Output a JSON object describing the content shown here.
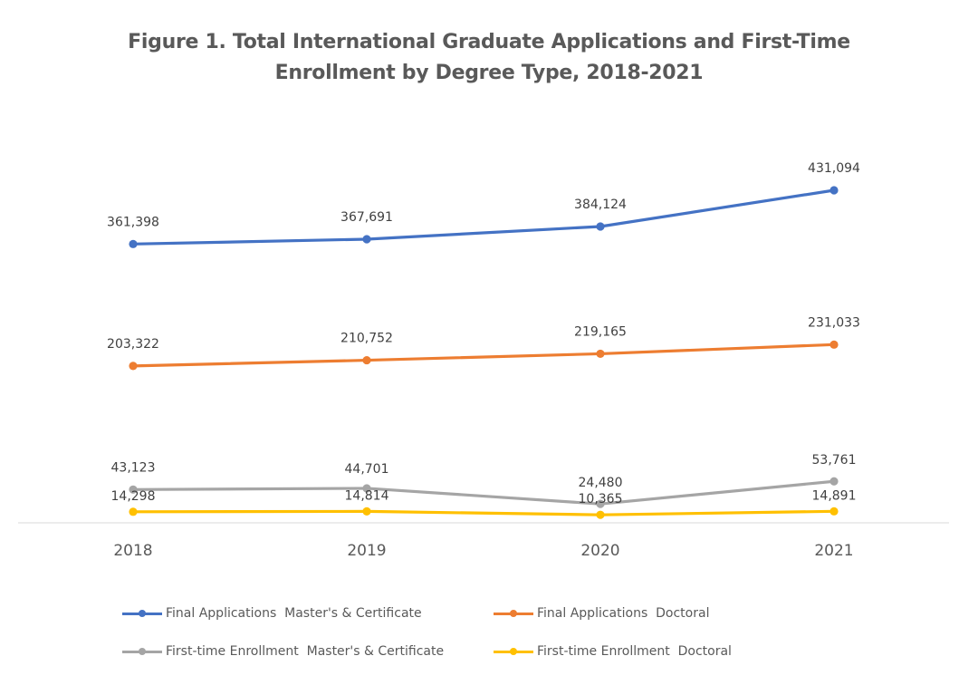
{
  "title_lines": [
    "Figure 1. Total International Graduate Applications and First-Time",
    "Enrollment by Degree Type, 2018-2021"
  ],
  "chart_data": {
    "type": "line",
    "title": "Figure 1. Total International Graduate Applications and First-Time Enrollment by Degree Type, 2018-2021",
    "x": [
      "2018",
      "2019",
      "2020",
      "2021"
    ],
    "y_axis_visible": false,
    "grid": false,
    "legend_position": "bottom",
    "series": [
      {
        "name": "Final Applications  Master's & Certificate",
        "color": "#4472C4",
        "values": [
          361398,
          367691,
          384124,
          431094
        ],
        "labels": [
          "361,398",
          "367,691",
          "384,124",
          "431,094"
        ]
      },
      {
        "name": "Final Applications  Doctoral",
        "color": "#ED7D31",
        "values": [
          203322,
          210752,
          219165,
          231033
        ],
        "labels": [
          "203,322",
          "210,752",
          "219,165",
          "231,033"
        ]
      },
      {
        "name": "First-time Enrollment  Master's & Certificate",
        "color": "#A5A5A5",
        "values": [
          43123,
          44701,
          24480,
          53761
        ],
        "labels": [
          "43,123",
          "44,701",
          "24,480",
          "53,761"
        ]
      },
      {
        "name": "First-time Enrollment  Doctoral",
        "color": "#FFC000",
        "values": [
          14298,
          14814,
          10365,
          14891
        ],
        "labels": [
          "14,298",
          "14,814",
          "10,365",
          "14,891"
        ]
      }
    ]
  }
}
